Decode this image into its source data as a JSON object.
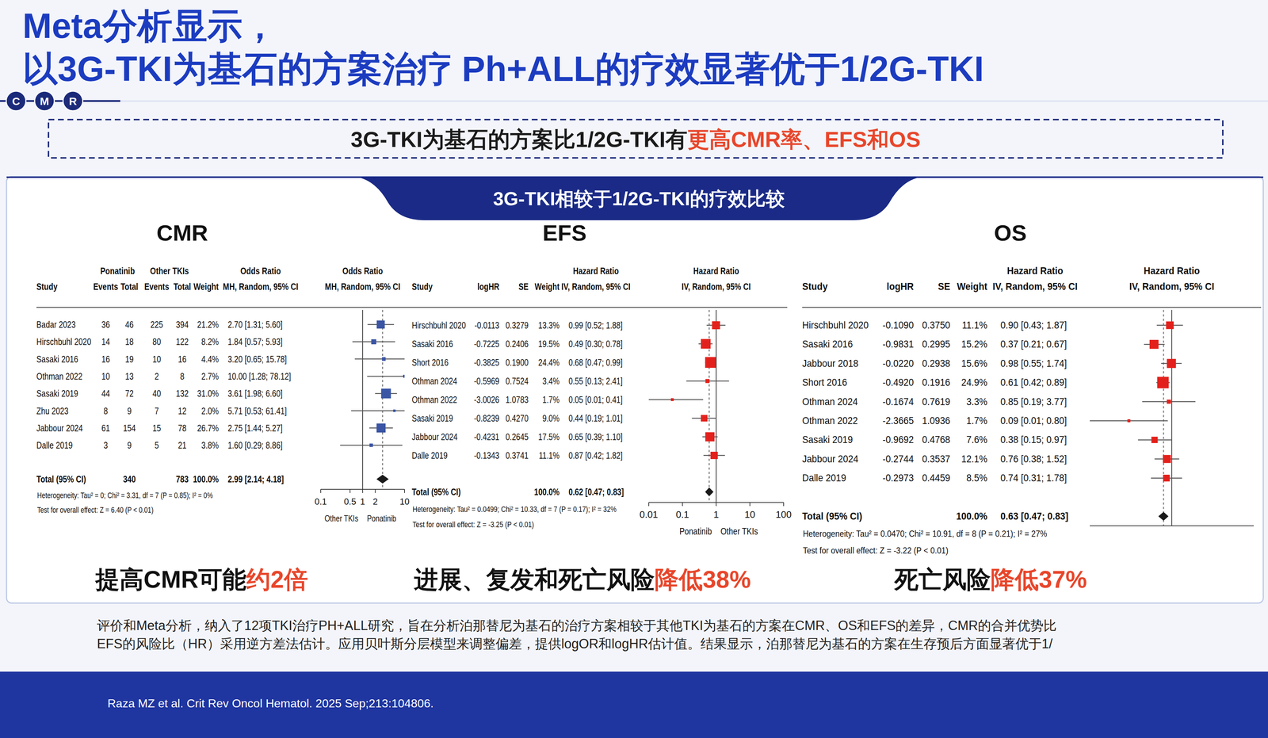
{
  "slide": {
    "title": [
      "Meta分析显示，",
      "以3G-TKI为基石的方案治疗 Ph+ALL的疗效显著优于1/2G-TKI"
    ],
    "logo": [
      "C",
      "M",
      "R"
    ],
    "summary": [
      {
        "text": "3G-TKI为基石的方案比1/2G-TKI有",
        "color": "#1a1a1a"
      },
      {
        "text": "更高CMR率、EFS和OS",
        "color": "#e8462b"
      }
    ],
    "banner": "3G-TKI相较于1/2G-TKI的疗效比较",
    "conclusions": [
      [
        {
          "text": "提高CMR可能",
          "color": "#111111"
        },
        {
          "text": "约2倍",
          "color": "#e8462b"
        }
      ],
      [
        {
          "text": "进展、复发和死亡风险",
          "color": "#111111"
        },
        {
          "text": "降低38%",
          "color": "#e8462b"
        }
      ],
      [
        {
          "text": "死亡风险",
          "color": "#111111"
        },
        {
          "text": "降低37%",
          "color": "#e8462b"
        }
      ]
    ],
    "footnote": [
      "评价和Meta分析，纳入了12项TKI治疗PH+ALL研究，旨在分析泊那替尼为基石的治疗方案相较于其他TKI为基石的方案在CMR、OS和EFS的差异，CMR的合并优势比",
      "EFS的风险比（HR）采用逆方差法估计。应用贝叶斯分层模型来调整偏差，提供logOR和logHR估计值。结果显示，泊那替尼为基石的方案在生存预后方面显著优于1/"
    ],
    "citation": "Raza MZ et al.  Crit Rev Oncol Hematol. 2025 Sep;213:104806."
  },
  "chart_data": [
    {
      "type": "forest",
      "title": "CMR",
      "log": "x",
      "xlim": [
        0.1,
        10
      ],
      "xticks": [
        0.1,
        0.5,
        1,
        2,
        10
      ],
      "reference": 1,
      "marker": "square",
      "color": "#3a55a4",
      "columns": [
        "Study",
        "Events",
        "Total",
        "Events",
        "Total",
        "Weight",
        "MH, Random, 95% CI"
      ],
      "group_heads": [
        {
          "label": "Ponatinib",
          "columns": [
            1,
            2
          ]
        },
        {
          "label": "Other TKIs",
          "columns": [
            3,
            4
          ]
        },
        {
          "label": "Odds Ratio",
          "columns": [
            6
          ]
        }
      ],
      "plot_head": [
        "Odds Ratio",
        "MH, Random, 95% CI"
      ],
      "axis_labels": [
        "Other TKIs",
        "Ponatinib"
      ],
      "rows": [
        {
          "cells": [
            "Badar 2023",
            "36",
            "46",
            "225",
            "394",
            "21.2%",
            "2.70 [1.31; 5.60]"
          ],
          "estimate": 2.7,
          "ci": [
            1.31,
            5.6
          ],
          "weight": 21.2
        },
        {
          "cells": [
            "Hirschbuhl 2020",
            "14",
            "18",
            "80",
            "122",
            "8.2%",
            "1.84 [0.57; 5.93]"
          ],
          "estimate": 1.84,
          "ci": [
            0.57,
            5.93
          ],
          "weight": 8.2
        },
        {
          "cells": [
            "Sasaki 2016",
            "16",
            "19",
            "10",
            "16",
            "4.4%",
            "3.20 [0.65; 15.78]"
          ],
          "estimate": 3.2,
          "ci": [
            0.65,
            15.78
          ],
          "weight": 4.4
        },
        {
          "cells": [
            "Othman 2022",
            "10",
            "13",
            "2",
            "8",
            "2.7%",
            "10.00 [1.28; 78.12]"
          ],
          "estimate": 10.0,
          "ci": [
            1.28,
            78.12
          ],
          "weight": 2.7
        },
        {
          "cells": [
            "Sasaki 2019",
            "44",
            "72",
            "40",
            "132",
            "31.0%",
            "3.61 [1.98; 6.60]"
          ],
          "estimate": 3.61,
          "ci": [
            1.98,
            6.6
          ],
          "weight": 31.0
        },
        {
          "cells": [
            "Zhu 2023",
            "8",
            "9",
            "7",
            "12",
            "2.0%",
            "5.71 [0.53; 61.41]"
          ],
          "estimate": 5.71,
          "ci": [
            0.53,
            61.41
          ],
          "weight": 2.0
        },
        {
          "cells": [
            "Jabbour 2024",
            "61",
            "154",
            "15",
            "78",
            "26.7%",
            "2.75 [1.44; 5.27]"
          ],
          "estimate": 2.75,
          "ci": [
            1.44,
            5.27
          ],
          "weight": 26.7
        },
        {
          "cells": [
            "Dalle 2019",
            "3",
            "9",
            "5",
            "21",
            "3.8%",
            "1.60 [0.29; 8.86]"
          ],
          "estimate": 1.6,
          "ci": [
            0.29,
            8.86
          ],
          "weight": 3.8
        }
      ],
      "total": {
        "cells": [
          "Total (95% CI)",
          null,
          "340",
          null,
          "783",
          "100.0%",
          "2.99 [2.14; 4.18]"
        ],
        "estimate": 2.99,
        "ci": [
          2.14,
          4.18
        ],
        "marker": "diamond",
        "color": "#1a1a1a"
      },
      "notes": [
        "Heterogeneity: Tau² = 0; Chi² = 3.31, df = 7 (P = 0.85); I² = 0%",
        "Test for overall effect: Z = 6.40 (P < 0.01)"
      ]
    },
    {
      "type": "forest",
      "title": "EFS",
      "log": "x",
      "xlim": [
        0.01,
        100
      ],
      "xticks": [
        0.01,
        0.1,
        1,
        10,
        100
      ],
      "reference": 1,
      "marker": "square",
      "color": "#e3211c",
      "columns": [
        "Study",
        "logHR",
        "SE",
        "Weight",
        "IV, Random, 95% CI"
      ],
      "group_heads": [
        {
          "label": "Hazard Ratio",
          "columns": [
            4
          ]
        }
      ],
      "plot_head": [
        "Hazard Ratio",
        "IV, Random, 95% CI"
      ],
      "axis_labels": [
        "Ponatinib",
        "Other TKIs"
      ],
      "rows": [
        {
          "cells": [
            "Hirschbuhl 2020",
            "-0.0113",
            "0.3279",
            "13.3%",
            "0.99 [0.52; 1.88]"
          ],
          "estimate": 0.99,
          "ci": [
            0.52,
            1.88
          ],
          "weight": 13.3
        },
        {
          "cells": [
            "Sasaki 2016",
            "-0.7225",
            "0.2406",
            "19.5%",
            "0.49 [0.30; 0.78]"
          ],
          "estimate": 0.49,
          "ci": [
            0.3,
            0.78
          ],
          "weight": 19.5
        },
        {
          "cells": [
            "Short 2016",
            "-0.3825",
            "0.1900",
            "24.4%",
            "0.68 [0.47; 0.99]"
          ],
          "estimate": 0.68,
          "ci": [
            0.47,
            0.99
          ],
          "weight": 24.4
        },
        {
          "cells": [
            "Othman 2024",
            "-0.5969",
            "0.7524",
            "3.4%",
            "0.55 [0.13; 2.41]"
          ],
          "estimate": 0.55,
          "ci": [
            0.13,
            2.41
          ],
          "weight": 3.4
        },
        {
          "cells": [
            "Othman 2022",
            "-3.0026",
            "1.0783",
            "1.7%",
            "0.05 [0.01; 0.41]"
          ],
          "estimate": 0.05,
          "ci": [
            0.01,
            0.41
          ],
          "weight": 1.7
        },
        {
          "cells": [
            "Sasaki 2019",
            "-0.8239",
            "0.4270",
            "9.0%",
            "0.44 [0.19; 1.01]"
          ],
          "estimate": 0.44,
          "ci": [
            0.19,
            1.01
          ],
          "weight": 9.0
        },
        {
          "cells": [
            "Jabbour 2024",
            "-0.4231",
            "0.2645",
            "17.5%",
            "0.65 [0.39; 1.10]"
          ],
          "estimate": 0.65,
          "ci": [
            0.39,
            1.1
          ],
          "weight": 17.5
        },
        {
          "cells": [
            "Dalle 2019",
            "-0.1343",
            "0.3741",
            "11.1%",
            "0.87 [0.42; 1.82]"
          ],
          "estimate": 0.87,
          "ci": [
            0.42,
            1.82
          ],
          "weight": 11.1
        }
      ],
      "total": {
        "cells": [
          "Total (95% CI)",
          null,
          null,
          "100.0%",
          "0.62 [0.47; 0.83]"
        ],
        "estimate": 0.62,
        "ci": [
          0.47,
          0.83
        ],
        "marker": "diamond",
        "color": "#1a1a1a"
      },
      "notes": [
        "Heterogeneity: Tau² = 0.0499; Chi² = 10.33, df = 7 (P = 0.17); I² = 32%",
        "Test for overall effect: Z = -3.25 (P < 0.01)"
      ]
    },
    {
      "type": "forest",
      "title": "OS",
      "log": "x",
      "xlim": [
        0.01,
        100
      ],
      "tick_labels": false,
      "reference": 1,
      "marker": "square",
      "color": "#e3211c",
      "columns": [
        "Study",
        "logHR",
        "SE",
        "Weight",
        "IV, Random, 95% CI"
      ],
      "group_heads": [
        {
          "label": "Hazard Ratio",
          "columns": [
            4
          ]
        }
      ],
      "plot_head": [
        "Hazard Ratio",
        "IV, Random, 95% CI"
      ],
      "rows": [
        {
          "cells": [
            "Hirschbuhl 2020",
            "-0.1090",
            "0.3750",
            "11.1%",
            "0.90 [0.43; 1.87]"
          ],
          "estimate": 0.9,
          "ci": [
            0.43,
            1.87
          ],
          "weight": 11.1
        },
        {
          "cells": [
            "Sasaki 2016",
            "-0.9831",
            "0.2995",
            "15.2%",
            "0.37 [0.21; 0.67]"
          ],
          "estimate": 0.37,
          "ci": [
            0.21,
            0.67
          ],
          "weight": 15.2
        },
        {
          "cells": [
            "Jabbour 2018",
            "-0.0220",
            "0.2938",
            "15.6%",
            "0.98 [0.55; 1.74]"
          ],
          "estimate": 0.98,
          "ci": [
            0.55,
            1.74
          ],
          "weight": 15.6
        },
        {
          "cells": [
            "Short 2016",
            "-0.4920",
            "0.1916",
            "24.9%",
            "0.61 [0.42; 0.89]"
          ],
          "estimate": 0.61,
          "ci": [
            0.42,
            0.89
          ],
          "weight": 24.9
        },
        {
          "cells": [
            "Othman 2024",
            "-0.1674",
            "0.7619",
            "3.3%",
            "0.85 [0.19; 3.77]"
          ],
          "estimate": 0.85,
          "ci": [
            0.19,
            3.77
          ],
          "weight": 3.3
        },
        {
          "cells": [
            "Othman 2022",
            "-2.3665",
            "1.0936",
            "1.7%",
            "0.09 [0.01; 0.80]"
          ],
          "estimate": 0.09,
          "ci": [
            0.01,
            0.8
          ],
          "weight": 1.7
        },
        {
          "cells": [
            "Sasaki 2019",
            "-0.9692",
            "0.4768",
            "7.6%",
            "0.38 [0.15; 0.97]"
          ],
          "estimate": 0.38,
          "ci": [
            0.15,
            0.97
          ],
          "weight": 7.6
        },
        {
          "cells": [
            "Jabbour 2024",
            "-0.2744",
            "0.3537",
            "12.1%",
            "0.76 [0.38; 1.52]"
          ],
          "estimate": 0.76,
          "ci": [
            0.38,
            1.52
          ],
          "weight": 12.1
        },
        {
          "cells": [
            "Dalle 2019",
            "-0.2973",
            "0.4459",
            "8.5%",
            "0.74 [0.31; 1.78]"
          ],
          "estimate": 0.74,
          "ci": [
            0.31,
            1.78
          ],
          "weight": 8.5
        }
      ],
      "total": {
        "cells": [
          "Total (95% CI)",
          null,
          null,
          "100.0%",
          "0.63 [0.47; 0.83]"
        ],
        "estimate": 0.63,
        "ci": [
          0.47,
          0.83
        ],
        "marker": "diamond",
        "color": "#1a1a1a"
      },
      "notes": [
        "Heterogeneity: Tau² = 0.0470; Chi² = 10.91, df = 8 (P = 0.21); I² = 27%",
        "Test for overall effect: Z = -3.22 (P < 0.01)"
      ]
    }
  ]
}
